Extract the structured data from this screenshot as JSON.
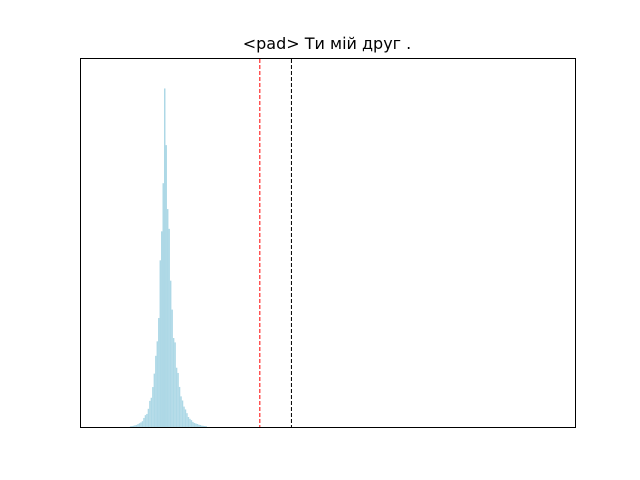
{
  "chart_data": {
    "type": "histogram",
    "title": "<pad> Ти мій друг .",
    "xlabel": "",
    "ylabel": "",
    "show_ticks": false,
    "grid": false,
    "xlim": [
      0,
      100
    ],
    "ylim": [
      0,
      1.05
    ],
    "histogram": {
      "color": "#add8e6",
      "peak_x": 17,
      "peak_height": 1.0,
      "bin_width": 0.3,
      "left_scale": 2.5,
      "right_scale": 3.0,
      "range": [
        6,
        30
      ]
    },
    "vlines": [
      {
        "name": "red-dashed-line",
        "x": 36.2,
        "color": "#ff0000",
        "style": "dashed"
      },
      {
        "name": "black-dashed-line",
        "x": 42.6,
        "color": "#000000",
        "style": "dashed"
      }
    ]
  }
}
